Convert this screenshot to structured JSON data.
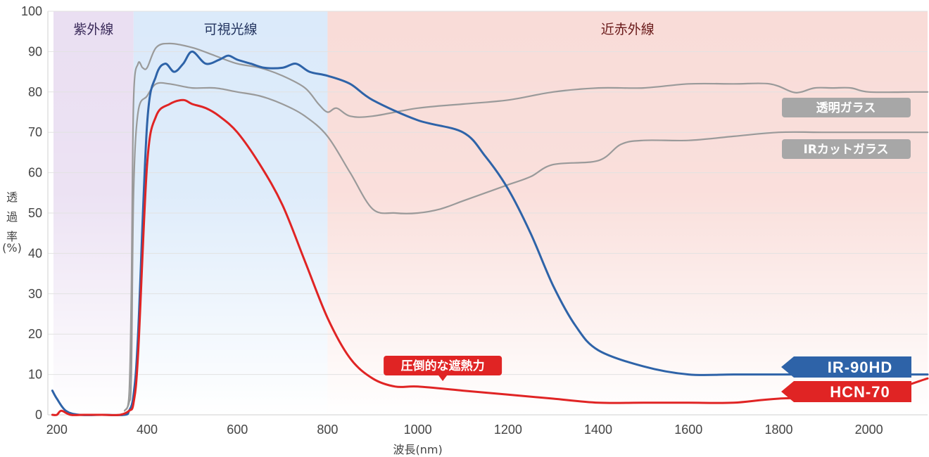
{
  "chart_data": {
    "type": "line",
    "xlabel": "波長(nm)",
    "ylabel": "透過率(%)",
    "ylabel_chars": [
      "透",
      "過",
      "率"
    ],
    "ylabel_unit": "(%)",
    "xlim": [
      180,
      2130
    ],
    "ylim": [
      0,
      100
    ],
    "x_ticks": [
      200,
      400,
      600,
      800,
      1000,
      1200,
      1400,
      1600,
      1800,
      2000
    ],
    "y_ticks": [
      0,
      10,
      20,
      30,
      40,
      50,
      60,
      70,
      80,
      90,
      100
    ],
    "grid": true,
    "regions": [
      {
        "label": "紫外線",
        "from": 190,
        "to": 370,
        "color": "#eadff2",
        "text_color": "#3a2a5a"
      },
      {
        "label": "可視光線",
        "from": 370,
        "to": 800,
        "color": "#dbeafa",
        "text_color": "#23345f"
      },
      {
        "label": "近赤外線",
        "from": 800,
        "to": 2130,
        "color": "#f9dcd8",
        "text_color": "#6a1a1a"
      }
    ],
    "series": [
      {
        "name": "透明ガラス",
        "color": "#9a9a9a",
        "x": [
          350,
          360,
          365,
          370,
          380,
          390,
          400,
          420,
          450,
          500,
          550,
          600,
          650,
          700,
          750,
          780,
          800,
          820,
          850,
          900,
          1000,
          1100,
          1200,
          1300,
          1400,
          1500,
          1600,
          1700,
          1780,
          1830,
          1850,
          1880,
          1920,
          1960,
          2000,
          2100,
          2130
        ],
        "y": [
          1,
          5,
          30,
          78,
          87,
          86,
          86,
          91,
          92,
          91,
          89,
          87,
          86,
          84,
          81,
          77,
          75,
          76,
          74,
          74,
          76,
          77,
          78,
          80,
          81,
          81,
          82,
          82,
          82,
          80,
          80,
          81,
          81,
          81,
          80,
          80,
          80
        ]
      },
      {
        "name": "IRカットガラス",
        "color": "#9a9a9a",
        "x": [
          350,
          360,
          365,
          370,
          380,
          400,
          420,
          450,
          500,
          550,
          600,
          650,
          700,
          750,
          800,
          850,
          900,
          950,
          1000,
          1050,
          1100,
          1150,
          1200,
          1250,
          1300,
          1400,
          1450,
          1500,
          1600,
          1700,
          1800,
          1900,
          2000,
          2130
        ],
        "y": [
          1,
          3,
          10,
          55,
          75,
          79,
          82,
          82,
          81,
          81,
          80,
          79,
          77,
          74,
          69,
          60,
          51,
          50,
          50,
          51,
          53,
          55,
          57,
          59,
          62,
          63,
          67,
          68,
          68,
          69,
          70,
          70,
          70,
          70
        ]
      },
      {
        "name": "IR-90HD",
        "color": "#2e63a8",
        "x": [
          190,
          200,
          220,
          250,
          300,
          350,
          360,
          370,
          380,
          400,
          420,
          440,
          460,
          480,
          500,
          530,
          560,
          580,
          600,
          630,
          660,
          700,
          730,
          760,
          800,
          850,
          900,
          1000,
          1100,
          1150,
          1200,
          1250,
          1300,
          1350,
          1400,
          1500,
          1600,
          1700,
          1800,
          2000,
          2130
        ],
        "y": [
          6,
          4,
          1,
          0,
          0,
          0,
          1,
          5,
          20,
          72,
          84,
          87,
          85,
          87,
          90,
          87,
          88,
          89,
          88,
          87,
          86,
          86,
          87,
          85,
          84,
          82,
          78,
          73,
          70,
          64,
          56,
          45,
          32,
          22,
          16,
          12,
          10,
          10,
          10,
          10,
          10
        ]
      },
      {
        "name": "HCN-70",
        "color": "#e02424",
        "x": [
          190,
          200,
          210,
          230,
          260,
          300,
          340,
          360,
          370,
          380,
          400,
          420,
          450,
          480,
          500,
          530,
          560,
          600,
          650,
          700,
          750,
          800,
          850,
          900,
          950,
          1000,
          1100,
          1200,
          1300,
          1400,
          1500,
          1600,
          1700,
          1800,
          2000,
          2130
        ],
        "y": [
          0,
          0,
          1,
          0,
          0,
          0,
          0,
          1,
          3,
          15,
          62,
          74,
          77,
          78,
          77,
          76,
          74,
          70,
          62,
          52,
          38,
          24,
          14,
          9,
          7,
          7,
          6,
          5,
          4,
          3,
          3,
          3,
          3,
          4,
          5,
          9
        ]
      }
    ],
    "series_labels": {
      "clear_glass": "透明ガラス",
      "ir_cut_glass": "IRカットガラス"
    },
    "badges": {
      "ir90hd": "IR-90HD",
      "hcn70": "HCN-70"
    },
    "callout": {
      "text": "圧倒的な遮熱力",
      "x": 1060,
      "y": 9
    }
  }
}
